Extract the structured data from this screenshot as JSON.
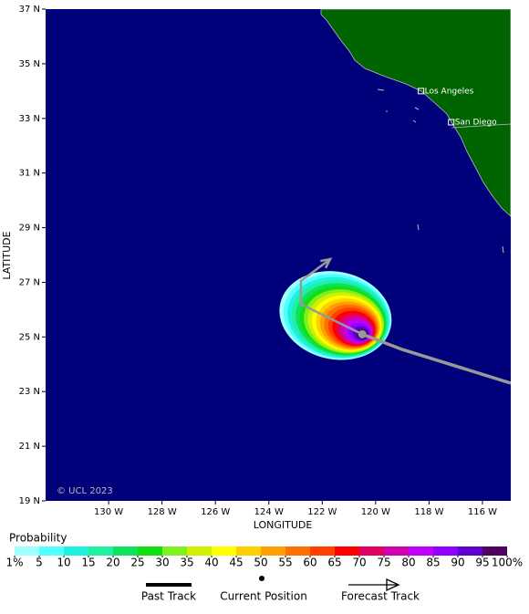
{
  "map": {
    "lat_range": [
      19,
      37
    ],
    "lon_range": [
      132.36,
      114.94
    ],
    "lat_ticks": [
      {
        "value": 19,
        "label": "19 N"
      },
      {
        "value": 21,
        "label": "21 N"
      },
      {
        "value": 23,
        "label": "23 N"
      },
      {
        "value": 25,
        "label": "25 N"
      },
      {
        "value": 27,
        "label": "27 N"
      },
      {
        "value": 29,
        "label": "29 N"
      },
      {
        "value": 31,
        "label": "31 N"
      },
      {
        "value": 33,
        "label": "33 N"
      },
      {
        "value": 35,
        "label": "35 N"
      },
      {
        "value": 37,
        "label": "37 N"
      }
    ],
    "lon_ticks": [
      {
        "value": 130,
        "label": "130 W"
      },
      {
        "value": 128,
        "label": "128 W"
      },
      {
        "value": 126,
        "label": "126 W"
      },
      {
        "value": 124,
        "label": "124 W"
      },
      {
        "value": 122,
        "label": "122 W"
      },
      {
        "value": 120,
        "label": "120 W"
      },
      {
        "value": 118,
        "label": "118 W"
      },
      {
        "value": 116,
        "label": "116 W"
      }
    ],
    "x_label": "LONGITUDE",
    "y_label": "LATITUDE",
    "credit": "© UCL 2023",
    "cities": [
      {
        "name": "Los Angeles",
        "lat": 34.0,
        "lon": 118.3
      },
      {
        "name": "San Diego",
        "lat": 32.86,
        "lon": 117.17
      }
    ],
    "past_track": {
      "lat": [
        23.31,
        24.54,
        25.1
      ],
      "lon": [
        114.94,
        119.0,
        120.5
      ]
    },
    "current_position": {
      "lat": 25.1,
      "lon": 120.5
    },
    "forecast_track": {
      "lat": [
        25.1,
        26.2,
        27.05,
        27.85
      ],
      "lon": [
        120.5,
        122.8,
        122.8,
        121.7
      ]
    }
  },
  "probability_scale": {
    "title": "Probability",
    "ticks": [
      {
        "value": 1,
        "label": "1%"
      },
      5,
      10,
      15,
      20,
      25,
      30,
      35,
      40,
      45,
      50,
      55,
      60,
      65,
      70,
      75,
      80,
      85,
      90,
      95,
      {
        "value": 100,
        "label": "100%"
      }
    ],
    "colors": [
      "#a0ffff",
      "#50ffff",
      "#20f0e0",
      "#20f0a0",
      "#10e060",
      "#10e010",
      "#80f020",
      "#d0f000",
      "#ffff00",
      "#ffd000",
      "#ffa000",
      "#ff7000",
      "#ff4000",
      "#ff0000",
      "#e00060",
      "#d000b0",
      "#c000ff",
      "#9000ff",
      "#6000d0",
      "#500060"
    ]
  },
  "legend": [
    "Past Track",
    "Current Position",
    "Forecast Track"
  ]
}
